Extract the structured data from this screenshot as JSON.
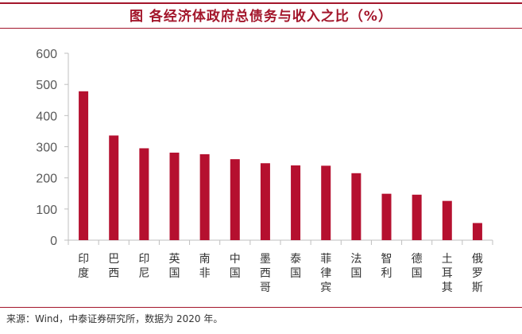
{
  "title": "图  各经济体政府总债务与收入之比（%）",
  "source": "来源：Wind，中泰证券研究所，数据为 2020 年。",
  "colors": {
    "bar": "#b5102f",
    "accent": "#a3162b",
    "axis": "#bfbfbf"
  },
  "chart_data": {
    "type": "bar",
    "title": "图  各经济体政府总债务与收入之比（%）",
    "xlabel": "",
    "ylabel": "",
    "categories": [
      "印度",
      "巴西",
      "印尼",
      "英国",
      "南非",
      "中国",
      "墨西哥",
      "泰国",
      "菲律宾",
      "法国",
      "智利",
      "德国",
      "土耳其",
      "俄罗斯"
    ],
    "values": [
      478,
      336,
      295,
      281,
      276,
      260,
      247,
      240,
      239,
      215,
      149,
      146,
      126,
      55
    ],
    "ylim": [
      0,
      600
    ],
    "yticks": [
      0,
      100,
      200,
      300,
      400,
      500,
      600
    ],
    "grid": false,
    "legend": "none"
  }
}
